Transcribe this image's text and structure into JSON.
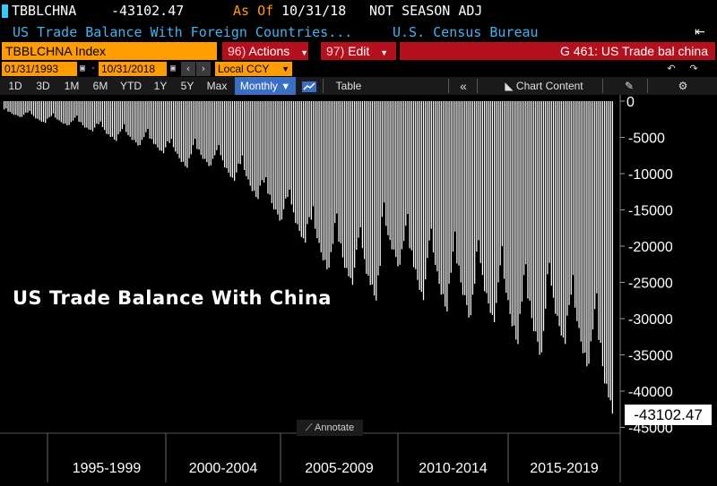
{
  "header": {
    "ticker": "TBBLCHNA",
    "last_value": "-43102.47",
    "as_of_label": "As Of",
    "as_of_date": "10/31/18",
    "adjustment": "NOT SEASON ADJ"
  },
  "subheader": {
    "description": "US Trade Balance With Foreign Countries...",
    "source": "U.S. Census Bureau"
  },
  "security_bar": {
    "security": "TBBLCHNA Index",
    "actions_num": "96)",
    "actions_label": "Actions",
    "edit_num": "97)",
    "edit_label": "Edit",
    "graph_title": "G 461: US Trade bal china"
  },
  "range_bar": {
    "start_date": "01/31/1993",
    "end_date": "10/31/2018",
    "currency": "Local CCY"
  },
  "toolbar": {
    "periods": [
      "1D",
      "3D",
      "1M",
      "6M",
      "YTD",
      "1Y",
      "5Y",
      "Max"
    ],
    "frequency": "Monthly",
    "table_label": "Table",
    "chart_content_label": "Chart Content"
  },
  "chart_title": "US Trade Balance With China",
  "annotate_label": "Annotate",
  "last_price_label": "-43102.47",
  "colors": {
    "amber": "#ff9d00",
    "cyan": "#3fb4f0",
    "red_button": "#b5101e",
    "selected": "#3a6fc4",
    "bar_fill": "#ffffff"
  },
  "chart_data": {
    "type": "bar",
    "title": "US Trade Balance With China",
    "frequency": "monthly",
    "x_range": [
      "1993-01",
      "2018-10"
    ],
    "ylim": [
      -45000,
      0
    ],
    "y_ticks": [
      0,
      -5000,
      -10000,
      -15000,
      -20000,
      -25000,
      -30000,
      -35000,
      -40000,
      -45000
    ],
    "x_period_labels": [
      "1995-1999",
      "2000-2004",
      "2005-2009",
      "2010-2014",
      "2015-2019"
    ],
    "last_value": -43102.47,
    "annual_min": {
      "1993": -2200,
      "1994": -3000,
      "1995": -3400,
      "1996": -4200,
      "1997": -5500,
      "1998": -6200,
      "1999": -7200,
      "2000": -9200,
      "2001": -9000,
      "2002": -11000,
      "2003": -13500,
      "2004": -16500,
      "2005": -19500,
      "2006": -23500,
      "2007": -25500,
      "2008": -27500,
      "2009": -23000,
      "2010": -27500,
      "2011": -29000,
      "2012": -30000,
      "2013": -30500,
      "2014": -33500,
      "2015": -35000,
      "2016": -33500,
      "2017": -37000,
      "2018": -43102.47
    },
    "annual_max": {
      "1993": -1000,
      "1994": -1300,
      "1995": -1700,
      "1996": -2000,
      "1997": -2700,
      "1998": -3200,
      "1999": -3800,
      "2000": -5000,
      "2001": -5200,
      "2002": -6000,
      "2003": -7500,
      "2004": -10500,
      "2005": -12000,
      "2006": -14500,
      "2007": -15500,
      "2008": -17000,
      "2009": -14000,
      "2010": -15500,
      "2011": -17000,
      "2012": -18000,
      "2013": -19000,
      "2014": -20000,
      "2015": -22500,
      "2016": -22000,
      "2017": -24000,
      "2018": -26500
    }
  }
}
